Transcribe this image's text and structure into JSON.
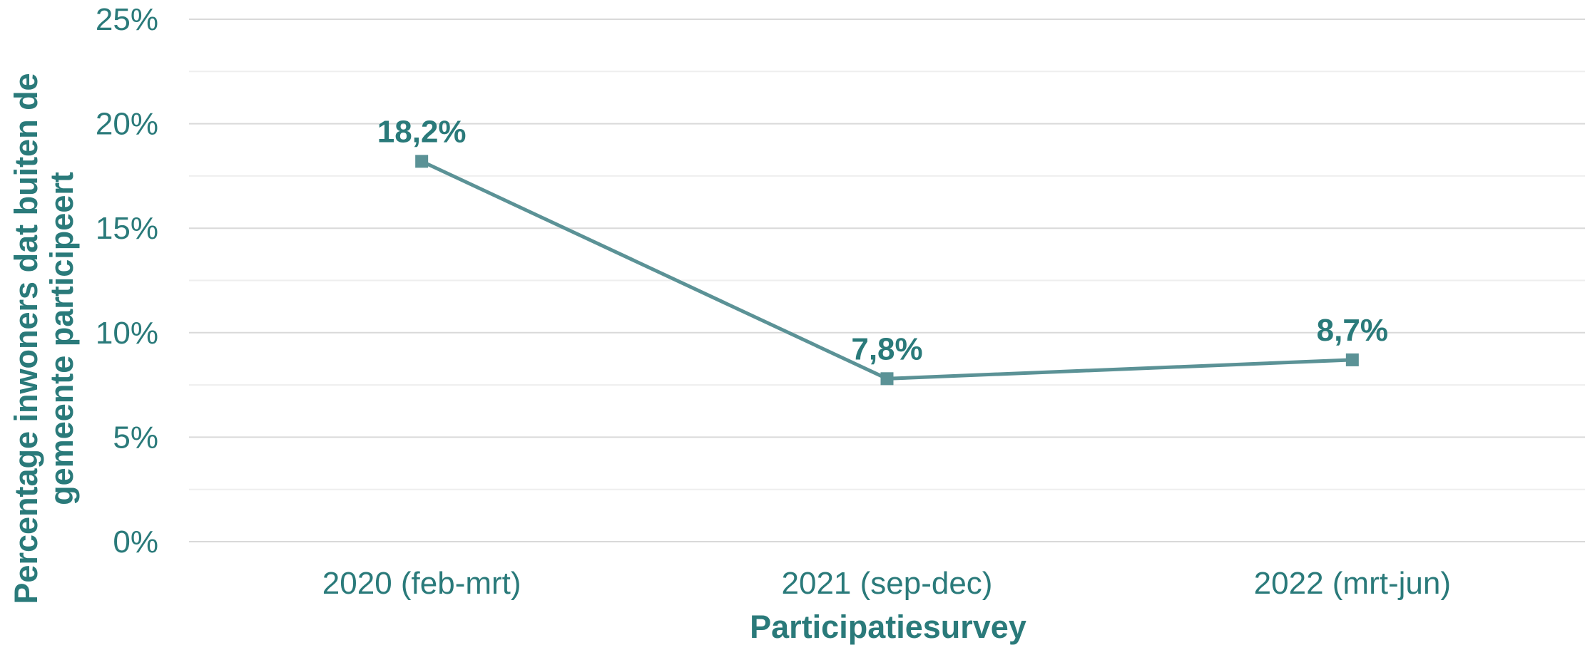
{
  "chart_data": {
    "type": "line",
    "categories": [
      "2020 (feb-mrt)",
      "2021 (sep-dec)",
      "2022 (mrt-jun)"
    ],
    "series": [
      {
        "values": [
          18.2,
          7.8,
          8.7
        ],
        "data_labels": [
          "18,2%",
          "7,8%",
          "8,7%"
        ]
      }
    ],
    "xlabel": "Participatiesurvey",
    "ylabel": [
      "Percentage inwoners dat buiten de",
      "gemeente participeert"
    ],
    "ylim": [
      0,
      25
    ],
    "yticks": [
      0,
      5,
      10,
      15,
      20,
      25
    ],
    "ytick_labels": [
      "0%",
      "5%",
      "10%",
      "15%",
      "20%",
      "25%"
    ],
    "minor_gridlines": true,
    "legend": "none",
    "colors": {
      "line": "#5b9296",
      "marker": "#5b9296",
      "text": "#2a7a7a",
      "grid_major": "#d9d9d9",
      "grid_minor": "#eeeeee"
    }
  }
}
